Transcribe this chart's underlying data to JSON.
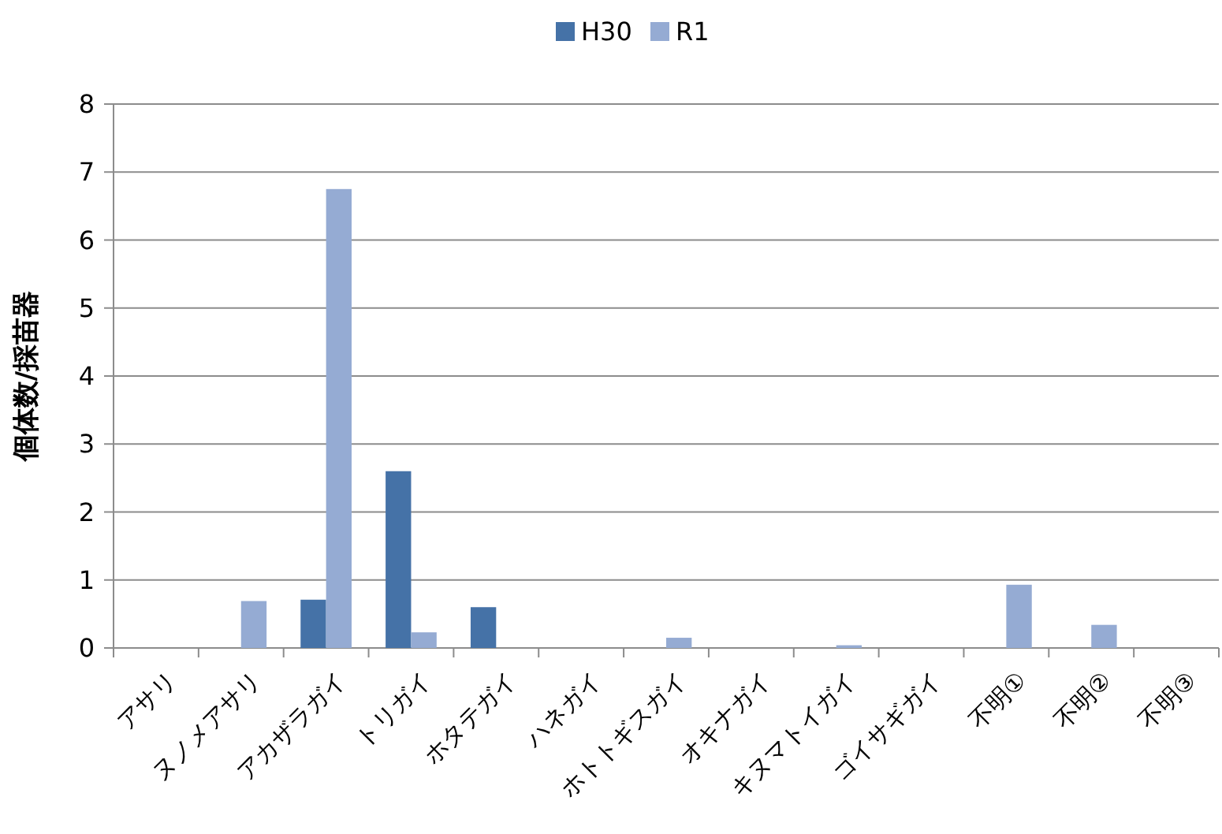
{
  "chart_data": {
    "type": "bar",
    "ylabel": "個体数/採苗器",
    "categories": [
      "アサリ",
      "ヌノメアサリ",
      "アカザラガイ",
      "トリガイ",
      "ホタテガイ",
      "ハネガイ",
      "ホトトギスガイ",
      "オキナガイ",
      "キヌマトイガイ",
      "ゴイサギガイ",
      "不明①",
      "不明②",
      "不明③"
    ],
    "series": [
      {
        "name": "H30",
        "color": "#4572a7",
        "values": [
          0,
          0,
          0.71,
          2.6,
          0.6,
          0,
          0,
          0,
          0,
          0,
          0,
          0,
          0
        ]
      },
      {
        "name": "R1",
        "color": "#95abd3",
        "values": [
          0,
          0.69,
          6.75,
          0.23,
          0,
          0,
          0.15,
          0,
          0.04,
          0,
          0.93,
          0.34,
          0
        ]
      }
    ],
    "ylim": [
      0,
      8
    ],
    "yticks": [
      0,
      1,
      2,
      3,
      4,
      5,
      6,
      7,
      8
    ],
    "grid": "y",
    "legend": "top"
  }
}
